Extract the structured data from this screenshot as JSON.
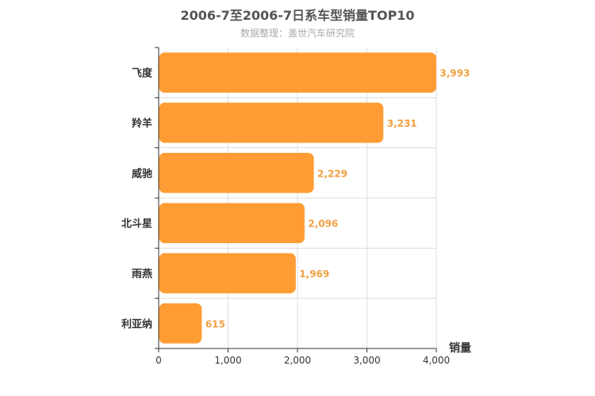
{
  "chart_data": {
    "type": "bar",
    "orientation": "horizontal",
    "title": "2006-7至2006-7日系车型销量TOP10",
    "subtitle": "数据整理：盖世汽车研究院",
    "categories": [
      "飞度",
      "羚羊",
      "威驰",
      "北斗星",
      "雨燕",
      "利亚纳"
    ],
    "values": [
      3993,
      3231,
      2229,
      2096,
      1969,
      615
    ],
    "data_labels": [
      "3,993",
      "3,231",
      "2,229",
      "2,096",
      "1,969",
      "615"
    ],
    "xlabel": "销量",
    "ylabel": "",
    "xlim": [
      0,
      4000
    ],
    "x_ticks": [
      0,
      1000,
      2000,
      3000,
      4000
    ],
    "x_tick_labels": [
      "0",
      "1,000",
      "2,000",
      "3,000",
      "4,000"
    ],
    "grid": true,
    "colors": {
      "bar": "#ff9c33",
      "label": "#f0a040",
      "axis": "#333333",
      "grid": "#dddddd"
    }
  }
}
